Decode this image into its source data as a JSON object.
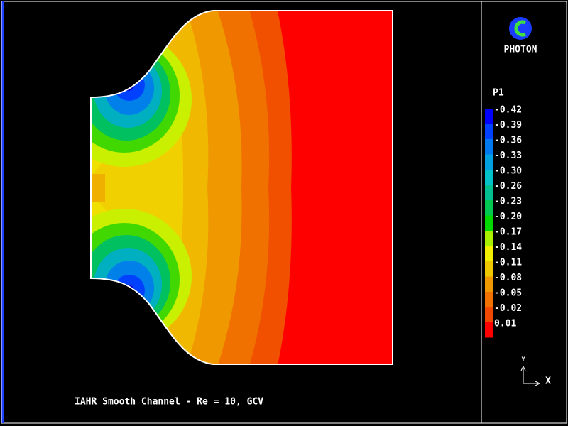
{
  "logo": {
    "text": "PHOTON"
  },
  "legend": {
    "title": "P1",
    "items": [
      {
        "label": "-0.42",
        "color": "#0000ff"
      },
      {
        "label": "-0.39",
        "color": "#0040ff"
      },
      {
        "label": "-0.36",
        "color": "#0078f0"
      },
      {
        "label": "-0.33",
        "color": "#00a0e0"
      },
      {
        "label": "-0.30",
        "color": "#00c0c8"
      },
      {
        "label": "-0.26",
        "color": "#00c090"
      },
      {
        "label": "-0.23",
        "color": "#00c850"
      },
      {
        "label": "-0.20",
        "color": "#00d800"
      },
      {
        "label": "-0.17",
        "color": "#a8f000"
      },
      {
        "label": "-0.14",
        "color": "#f0f000"
      },
      {
        "label": "-0.11",
        "color": "#f0c800"
      },
      {
        "label": "-0.08",
        "color": "#f09800"
      },
      {
        "label": "-0.05",
        "color": "#f07000"
      },
      {
        "label": "-0.02",
        "color": "#f04800"
      },
      {
        "label": "0.01",
        "color": "#ff0000"
      }
    ]
  },
  "axes": {
    "y": "Y",
    "x": "X"
  },
  "caption": "IAHR Smooth Channel - Re = 10, GCV"
}
